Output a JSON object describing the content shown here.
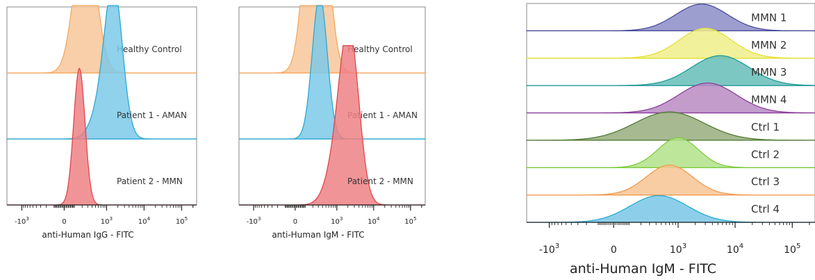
{
  "chart_data": [
    {
      "type": "histogram",
      "panel": "IgG",
      "xlabel": "anti-Human IgG - FITC",
      "y_unit": "normalized count",
      "x_scale": "biexponential",
      "x_range": [
        -2500,
        250000
      ],
      "xticks": [
        {
          "value": -1000,
          "base": "-10",
          "exp": "3"
        },
        {
          "value": 0,
          "base": "0",
          "exp": ""
        },
        {
          "value": 1000,
          "base": "10",
          "exp": "3"
        },
        {
          "value": 10000,
          "base": "10",
          "exp": "4"
        },
        {
          "value": 100000,
          "base": "10",
          "exp": "5"
        }
      ],
      "series": [
        {
          "name": "Healthy Control",
          "color": "#f5a95d",
          "fill": "#f8c79b",
          "peaks": [
            {
              "center": 250,
              "sd": 0.055,
              "height": 1.0
            }
          ]
        },
        {
          "name": "Patient 1 - AMAN",
          "color": "#2aa9d4",
          "fill": "#7cc9e8",
          "peaks": [
            {
              "center": 1600,
              "sd": 0.045,
              "height": 0.82
            },
            {
              "center": 950,
              "sd": 0.06,
              "height": 0.28
            }
          ]
        },
        {
          "name": "Patient 2 - MMN",
          "color": "#e0454b",
          "fill": "#ee8185",
          "peaks": [
            {
              "center": 160,
              "sd": 0.03,
              "height": 0.9
            }
          ]
        }
      ]
    },
    {
      "type": "histogram",
      "panel": "IgM",
      "xlabel": "anti-Human IgM - FITC",
      "y_unit": "normalized count",
      "x_scale": "biexponential",
      "x_range": [
        -2500,
        250000
      ],
      "xticks": [
        {
          "value": -1000,
          "base": "-10",
          "exp": "3"
        },
        {
          "value": 0,
          "base": "0",
          "exp": ""
        },
        {
          "value": 1000,
          "base": "10",
          "exp": "3"
        },
        {
          "value": 10000,
          "base": "10",
          "exp": "4"
        },
        {
          "value": 100000,
          "base": "10",
          "exp": "5"
        }
      ],
      "series": [
        {
          "name": "Healthy Control",
          "color": "#f5a95d",
          "fill": "#f8c79b",
          "peaks": [
            {
              "center": 200,
              "sd": 0.05,
              "height": 0.95
            },
            {
              "center": 340,
              "sd": 0.05,
              "height": 0.85
            }
          ]
        },
        {
          "name": "Patient 1 - AMAN",
          "color": "#2aa9d4",
          "fill": "#7cc9e8",
          "peaks": [
            {
              "center": 330,
              "sd": 0.04,
              "height": 0.95
            }
          ]
        },
        {
          "name": "Patient 2 - MMN",
          "color": "#e0454b",
          "fill": "#ee8185",
          "peaks": [
            {
              "center": 2300,
              "sd": 0.05,
              "height": 0.95
            },
            {
              "center": 1200,
              "sd": 0.06,
              "height": 0.35
            }
          ]
        }
      ]
    },
    {
      "type": "histogram",
      "panel": "IgM-individual",
      "xlabel": "anti-Human IgM - FITC",
      "y_unit": "normalized count",
      "x_scale": "biexponential",
      "x_range": [
        -2500,
        250000
      ],
      "xticks": [
        {
          "value": -1000,
          "base": "-10",
          "exp": "3"
        },
        {
          "value": 0,
          "base": "0",
          "exp": ""
        },
        {
          "value": 1000,
          "base": "10",
          "exp": "3"
        },
        {
          "value": 10000,
          "base": "10",
          "exp": "4"
        },
        {
          "value": 100000,
          "base": "10",
          "exp": "5"
        }
      ],
      "series": [
        {
          "name": "MMN 1",
          "color": "#4b4c9e",
          "fill": "#8c8dc8",
          "peaks": [
            {
              "center": 2600,
              "sd": 0.09,
              "height": 0.85
            }
          ]
        },
        {
          "name": "MMN 2",
          "color": "#e4e030",
          "fill": "#f0ee8a",
          "peaks": [
            {
              "center": 3000,
              "sd": 0.09,
              "height": 0.95
            }
          ]
        },
        {
          "name": "MMN 3",
          "color": "#1e9a96",
          "fill": "#66bdb9",
          "peaks": [
            {
              "center": 5500,
              "sd": 0.1,
              "height": 0.95
            }
          ]
        },
        {
          "name": "MMN 4",
          "color": "#8c3f9a",
          "fill": "#b98bc3",
          "peaks": [
            {
              "center": 3300,
              "sd": 0.1,
              "height": 0.95
            }
          ]
        },
        {
          "name": "Ctrl 1",
          "color": "#4f7a32",
          "fill": "#97ad7e",
          "peaks": [
            {
              "center": 700,
              "sd": 0.12,
              "height": 0.9
            }
          ]
        },
        {
          "name": "Ctrl 2",
          "color": "#7fcc3e",
          "fill": "#b3e289",
          "peaks": [
            {
              "center": 1000,
              "sd": 0.07,
              "height": 0.95
            }
          ]
        },
        {
          "name": "Ctrl 3",
          "color": "#f29a4d",
          "fill": "#f7c494",
          "peaks": [
            {
              "center": 700,
              "sd": 0.08,
              "height": 0.95
            }
          ]
        },
        {
          "name": "Ctrl 4",
          "color": "#2aaad6",
          "fill": "#79c7e6",
          "peaks": [
            {
              "center": 450,
              "sd": 0.1,
              "height": 0.85
            }
          ]
        }
      ]
    }
  ]
}
